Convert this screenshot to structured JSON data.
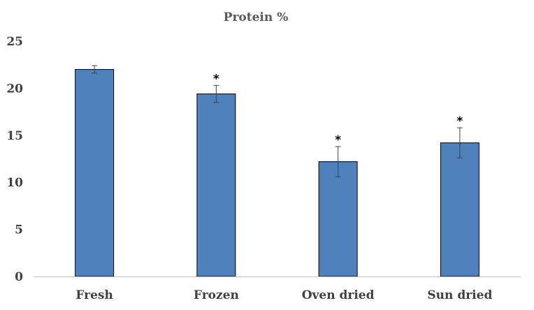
{
  "chart_data": {
    "type": "bar",
    "title": "Protein %",
    "xlabel": "",
    "ylabel": "",
    "categories": [
      "Fresh",
      "Frozen",
      "Oven dried",
      "Sun dried"
    ],
    "values": [
      22.0,
      19.4,
      12.2,
      14.2
    ],
    "error": [
      0.4,
      0.9,
      1.6,
      1.6
    ],
    "annotations": [
      "",
      "*",
      "*",
      "*"
    ],
    "ylim": [
      0,
      25
    ],
    "yticks": [
      "0",
      "5",
      "10",
      "15",
      "20",
      "25"
    ],
    "ytick_values": [
      0,
      5,
      10,
      15,
      20,
      25
    ],
    "grid": false,
    "legend": "none",
    "bar_color": "#4f81bd",
    "bar_edge_color": "#000000",
    "error_bar_color": "#404040"
  }
}
